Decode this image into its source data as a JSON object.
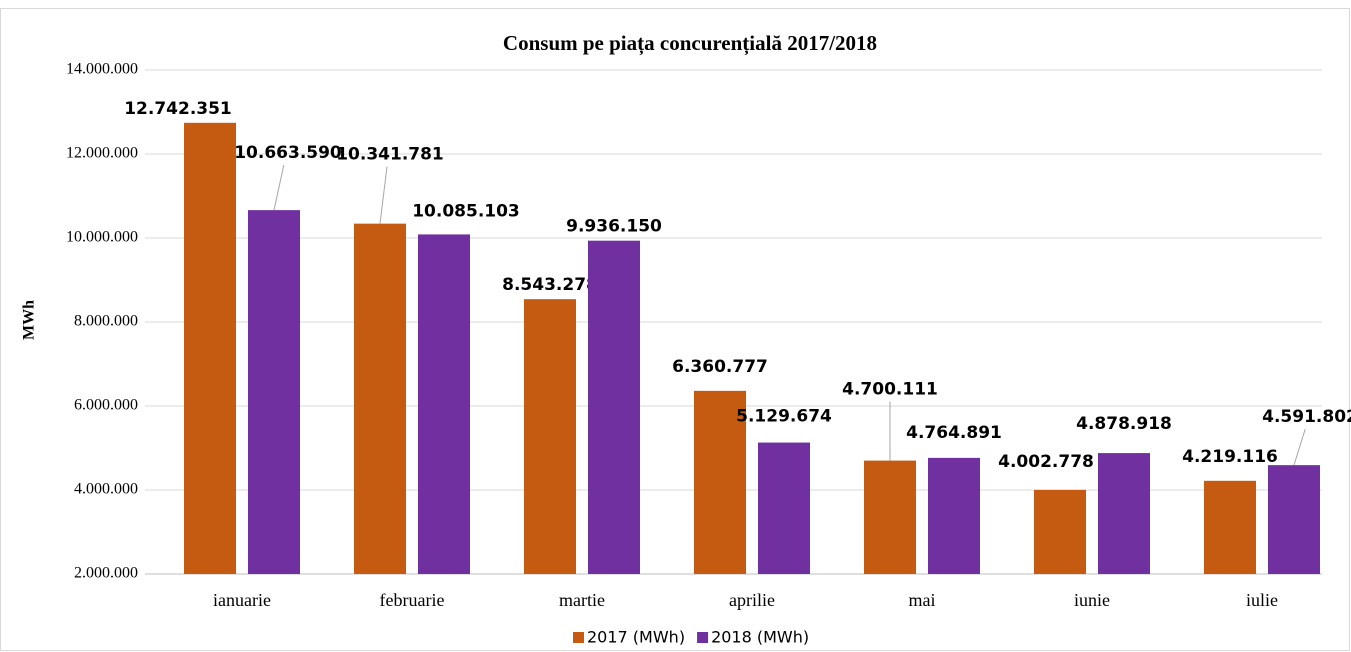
{
  "chart_data": {
    "type": "bar",
    "title": "Consum pe piața concurențială 2017/2018",
    "y_label": "MWh",
    "categories": [
      "ianuarie",
      "februarie",
      "martie",
      "aprilie",
      "mai",
      "iunie",
      "iulie"
    ],
    "series": [
      {
        "name": "2017 (MWh)",
        "color": "#c55a11",
        "values": [
          12742351,
          10341781,
          8543278,
          6360777,
          4700111,
          4002778,
          4219116
        ],
        "value_labels": [
          "12.742.351",
          "10.341.781",
          "8.543.278",
          "6.360.777",
          "4.700.111",
          "4.002.778",
          "4.219.116"
        ]
      },
      {
        "name": "2018 (MWh)",
        "color": "#7030a0",
        "values": [
          10663590,
          10085103,
          9936150,
          5129674,
          4764891,
          4878918,
          4591802
        ],
        "value_labels": [
          "10.663.590",
          "10.085.103",
          "9.936.150",
          "5.129.674",
          "4.764.891",
          "4.878.918",
          "4.591.802"
        ]
      }
    ],
    "ylim": [
      2000000,
      14000000
    ],
    "yticks": [
      {
        "value": 2000000,
        "label": "2.000.000"
      },
      {
        "value": 4000000,
        "label": "4.000.000"
      },
      {
        "value": 6000000,
        "label": "6.000.000"
      },
      {
        "value": 8000000,
        "label": "8.000.000"
      },
      {
        "value": 10000000,
        "label": "10.000.000"
      },
      {
        "value": 12000000,
        "label": "12.000.000"
      },
      {
        "value": 14000000,
        "label": "14.000.000"
      }
    ],
    "grid": true,
    "legend": "bottom"
  }
}
